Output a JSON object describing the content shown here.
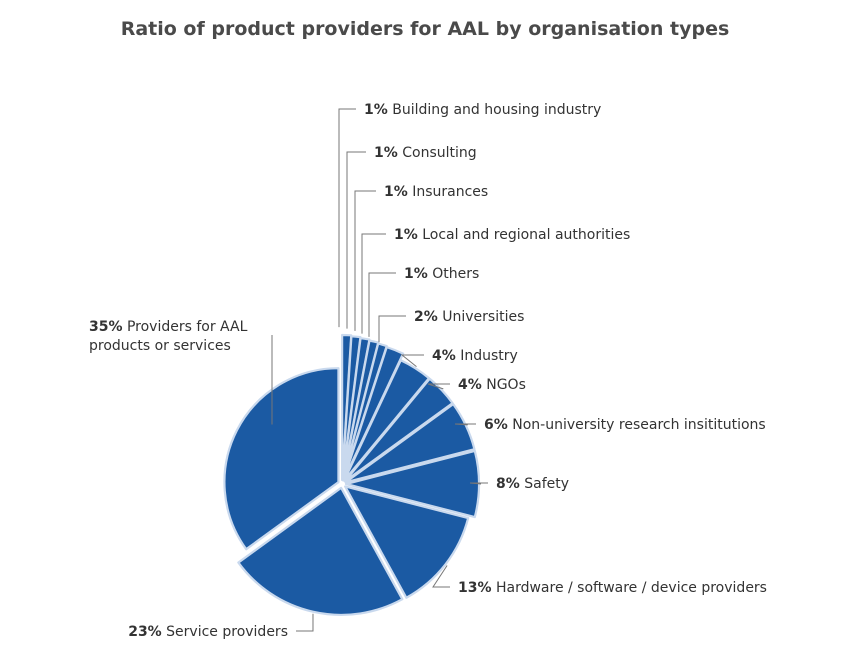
{
  "chart_data": {
    "type": "pie",
    "title": "Ratio of product providers for AAL by organisation types",
    "slices": [
      {
        "label": "Building and housing industry",
        "percent_label": "1%",
        "value": 1
      },
      {
        "label": "Consulting",
        "percent_label": "1%",
        "value": 1
      },
      {
        "label": "Insurances",
        "percent_label": "1%",
        "value": 1
      },
      {
        "label": "Local and regional authorities",
        "percent_label": "1%",
        "value": 1
      },
      {
        "label": "Others",
        "percent_label": "1%",
        "value": 1
      },
      {
        "label": "Universities",
        "percent_label": "2%",
        "value": 2
      },
      {
        "label": "Industry",
        "percent_label": "4%",
        "value": 4
      },
      {
        "label": "NGOs",
        "percent_label": "4%",
        "value": 4
      },
      {
        "label": "Non-university research insititutions",
        "percent_label": "6%",
        "value": 6
      },
      {
        "label": "Safety",
        "percent_label": "8%",
        "value": 8
      },
      {
        "label": "Hardware / software / device providers",
        "percent_label": "13%",
        "value": 13
      },
      {
        "label": "Service providers",
        "percent_label": "23%",
        "value": 23
      },
      {
        "label": "Providers for AAL products or services",
        "percent_label": "35%",
        "value": 35
      }
    ],
    "colors": {
      "slice_fill": "#1b5aa3",
      "slice_edge": "#c9d9ee",
      "leader": "#777777",
      "title": "#4a4a4a"
    }
  }
}
